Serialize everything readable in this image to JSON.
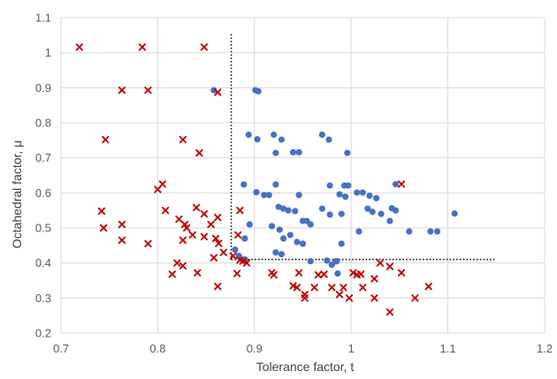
{
  "chart_data": {
    "type": "scatter",
    "xlabel": "Tolerance factor, t",
    "ylabel": "Octahedral factor, μ",
    "xlim": [
      0.7,
      1.2
    ],
    "ylim": [
      0.2,
      1.1
    ],
    "x_ticks": [
      "0.7",
      "0.8",
      "0.9",
      "1",
      "1.1",
      "1.2"
    ],
    "y_ticks": [
      "0.2",
      "0.3",
      "0.4",
      "0.5",
      "0.6",
      "0.7",
      "0.8",
      "0.9",
      "1",
      "1.1"
    ],
    "grid": "vertical and horizontal",
    "reference_lines": [
      {
        "style": "dotted",
        "from": [
          0.876,
          1.053
        ],
        "to": [
          0.876,
          0.41
        ]
      },
      {
        "style": "dotted",
        "from": [
          0.876,
          0.41
        ],
        "to": [
          1.15,
          0.41
        ]
      }
    ],
    "series": [
      {
        "marker": "circle",
        "color": "#4472C4",
        "points": [
          [
            0.858,
            0.893
          ],
          [
            0.901,
            0.893
          ],
          [
            0.904,
            0.89
          ],
          [
            0.894,
            0.766
          ],
          [
            0.903,
            0.753
          ],
          [
            0.92,
            0.766
          ],
          [
            0.928,
            0.752
          ],
          [
            0.922,
            0.714
          ],
          [
            0.94,
            0.716
          ],
          [
            0.946,
            0.716
          ],
          [
            0.97,
            0.766
          ],
          [
            0.977,
            0.752
          ],
          [
            0.996,
            0.714
          ],
          [
            0.889,
            0.624
          ],
          [
            0.902,
            0.602
          ],
          [
            0.91,
            0.594
          ],
          [
            0.922,
            0.624
          ],
          [
            0.915,
            0.594
          ],
          [
            0.946,
            0.594
          ],
          [
            0.978,
            0.621
          ],
          [
            0.988,
            0.596
          ],
          [
            0.994,
            0.589
          ],
          [
            0.993,
            0.621
          ],
          [
            0.997,
            0.621
          ],
          [
            1.006,
            0.601
          ],
          [
            1.012,
            0.601
          ],
          [
            1.019,
            0.592
          ],
          [
            1.026,
            0.585
          ],
          [
            1.046,
            0.625
          ],
          [
            0.925,
            0.56
          ],
          [
            0.93,
            0.555
          ],
          [
            0.935,
            0.55
          ],
          [
            0.942,
            0.548
          ],
          [
            0.95,
            0.52
          ],
          [
            0.954,
            0.52
          ],
          [
            0.958,
            0.51
          ],
          [
            0.97,
            0.555
          ],
          [
            0.978,
            0.538
          ],
          [
            0.99,
            0.54
          ],
          [
            1.017,
            0.555
          ],
          [
            1.022,
            0.546
          ],
          [
            1.031,
            0.54
          ],
          [
            1.04,
            0.52
          ],
          [
            1.042,
            0.556
          ],
          [
            1.046,
            0.55
          ],
          [
            0.895,
            0.51
          ],
          [
            0.918,
            0.505
          ],
          [
            0.926,
            0.495
          ],
          [
            0.93,
            0.47
          ],
          [
            0.937,
            0.48
          ],
          [
            0.944,
            0.46
          ],
          [
            0.95,
            0.455
          ],
          [
            0.99,
            0.455
          ],
          [
            1.008,
            0.49
          ],
          [
            1.06,
            0.49
          ],
          [
            1.082,
            0.49
          ],
          [
            1.089,
            0.49
          ],
          [
            1.107,
            0.541
          ],
          [
            0.89,
            0.47
          ],
          [
            0.922,
            0.43
          ],
          [
            0.928,
            0.425
          ],
          [
            0.958,
            0.405
          ],
          [
            0.975,
            0.407
          ],
          [
            0.98,
            0.395
          ],
          [
            0.984,
            0.405
          ],
          [
            0.986,
            0.37
          ],
          [
            0.985,
            0.405
          ],
          [
            0.89,
            0.41
          ],
          [
            0.88,
            0.438
          ],
          [
            0.884,
            0.42
          ]
        ]
      },
      {
        "marker": "x",
        "color": "#C00000",
        "points": [
          [
            0.719,
            1.016
          ],
          [
            0.784,
            1.016
          ],
          [
            0.848,
            1.016
          ],
          [
            0.763,
            0.893
          ],
          [
            0.79,
            0.893
          ],
          [
            0.862,
            0.887
          ],
          [
            0.746,
            0.752
          ],
          [
            0.826,
            0.752
          ],
          [
            0.843,
            0.714
          ],
          [
            0.8,
            0.61
          ],
          [
            0.805,
            0.625
          ],
          [
            0.742,
            0.548
          ],
          [
            0.744,
            0.5
          ],
          [
            0.763,
            0.51
          ],
          [
            0.763,
            0.465
          ],
          [
            0.79,
            0.455
          ],
          [
            0.808,
            0.55
          ],
          [
            0.822,
            0.525
          ],
          [
            0.828,
            0.51
          ],
          [
            0.83,
            0.5
          ],
          [
            0.84,
            0.558
          ],
          [
            0.848,
            0.54
          ],
          [
            0.862,
            0.53
          ],
          [
            0.826,
            0.465
          ],
          [
            0.836,
            0.48
          ],
          [
            0.848,
            0.475
          ],
          [
            0.855,
            0.51
          ],
          [
            0.86,
            0.47
          ],
          [
            0.863,
            0.456
          ],
          [
            0.868,
            0.43
          ],
          [
            0.858,
            0.415
          ],
          [
            0.878,
            0.42
          ],
          [
            0.885,
            0.408
          ],
          [
            0.888,
            0.405
          ],
          [
            0.885,
            0.55
          ],
          [
            0.883,
            0.48
          ],
          [
            0.892,
            0.4
          ],
          [
            0.82,
            0.4
          ],
          [
            0.815,
            0.368
          ],
          [
            0.826,
            0.392
          ],
          [
            0.841,
            0.372
          ],
          [
            0.882,
            0.37
          ],
          [
            0.862,
            0.333
          ],
          [
            0.918,
            0.372
          ],
          [
            0.92,
            0.366
          ],
          [
            0.94,
            0.335
          ],
          [
            0.944,
            0.33
          ],
          [
            0.946,
            0.372
          ],
          [
            0.952,
            0.31
          ],
          [
            0.952,
            0.3
          ],
          [
            0.962,
            0.33
          ],
          [
            0.966,
            0.366
          ],
          [
            0.972,
            0.368
          ],
          [
            0.98,
            0.33
          ],
          [
            0.988,
            0.31
          ],
          [
            0.992,
            0.33
          ],
          [
            0.998,
            0.3
          ],
          [
            1.002,
            0.372
          ],
          [
            1.006,
            0.366
          ],
          [
            1.012,
            0.33
          ],
          [
            1.01,
            0.368
          ],
          [
            1.024,
            0.355
          ],
          [
            1.03,
            0.4
          ],
          [
            1.04,
            0.39
          ],
          [
            1.052,
            0.372
          ],
          [
            1.066,
            0.3
          ],
          [
            1.08,
            0.333
          ],
          [
            1.04,
            0.26
          ],
          [
            1.052,
            0.625
          ],
          [
            1.024,
            0.3
          ]
        ]
      }
    ]
  }
}
